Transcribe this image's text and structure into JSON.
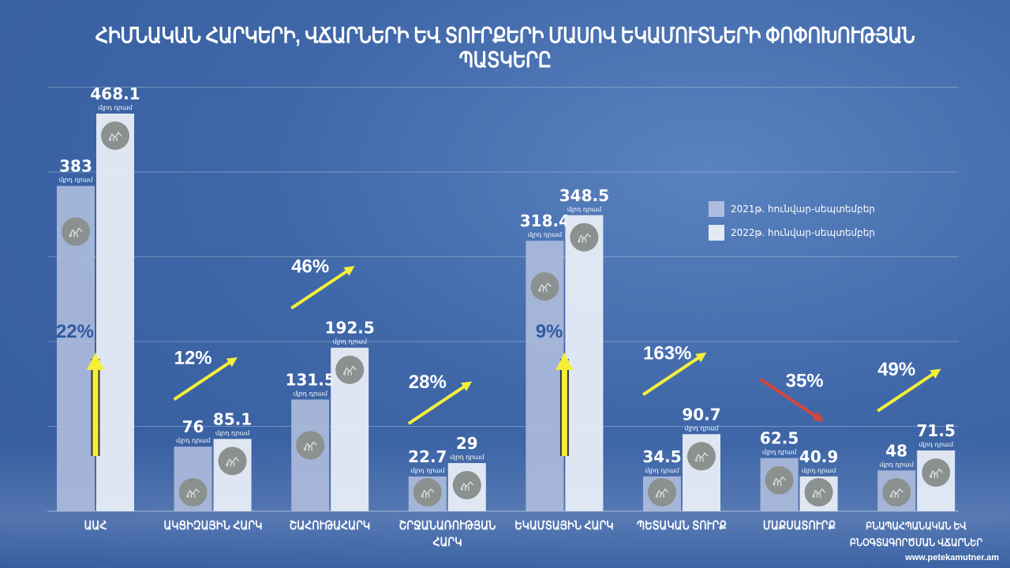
{
  "title": "ՀԻՄՆԱԿԱՆ ՀԱՐԿԵՐԻ, ՎՃԱՐՆԵՐԻ ԵՎ ՏՈՒՐՔԵՐԻ ՄԱՍՈՎ ԵԿԱՄՈՒՏՆԵՐԻ ՓՈՓՈԽՈՒԹՅԱՆ ՊԱՏԿԵՐԸ",
  "website": "www.petekamutner.am",
  "chart_data": {
    "type": "bar",
    "title": "ՀԻՄՆԱԿԱՆ ՀԱՐԿԵՐԻ, ՎՃԱՐՆԵՐԻ ԵՎ ՏՈՒՐՔԵՐԻ ՄԱՍՈՎ ԵԿԱՄՈՒՏՆԵՐԻ ՓՈՓՈԽՈՒԹՅԱՆ ՊԱՏԿԵՐԸ",
    "unit": "մլրդ դրամ",
    "categories": [
      "ԱԱՀ",
      "ԱԿՑԻԶԱՅԻՆ ՀԱՐԿ",
      "ՇԱՀՈՒԹԱՀԱՐԿ",
      "ՇՐՋԱՆԱՌՈՒԹՅԱՆ ՀԱՐԿ",
      "ԵԿԱՄՏԱՅԻՆ ՀԱՐԿ",
      "ՊԵՏԱԿԱՆ ՏՈՒՐՔ",
      "ՄԱՔՍԱՏՈՒՐՔ",
      "ԲՆԱՊԱՀՊԱՆԱԿԱՆ ԵՎ ԲՆՕԳՏԱԳՈՐԾՄԱՆ ՎՃԱՐՆԵՐ"
    ],
    "series": [
      {
        "name": "2021թ. հունվար-սեպտեմբեր",
        "color": "#aebcdd",
        "values": [
          383,
          76,
          131.5,
          22.7,
          318.4,
          34.5,
          62.5,
          48
        ],
        "labels": [
          "383",
          "76",
          "131.5",
          "22.7",
          "318.4",
          "34.5",
          "62.5",
          "48"
        ]
      },
      {
        "name": "2022թ. հունվար-սեպտեմբեր",
        "color": "#e4eaf5",
        "values": [
          468.1,
          85.1,
          192.5,
          29,
          348.5,
          90.7,
          40.9,
          71.5
        ],
        "labels": [
          "468.1",
          "85.1",
          "192.5",
          "29",
          "348.5",
          "90.7",
          "40.9",
          "71.5"
        ]
      }
    ],
    "changes": [
      {
        "label": "22%",
        "direction": "up",
        "style": "vertical"
      },
      {
        "label": "12%",
        "direction": "up",
        "style": "diagonal"
      },
      {
        "label": "46%",
        "direction": "up",
        "style": "diagonal"
      },
      {
        "label": "28%",
        "direction": "up",
        "style": "diagonal"
      },
      {
        "label": "9%",
        "direction": "up",
        "style": "vertical"
      },
      {
        "label": "163%",
        "direction": "up",
        "style": "diagonal"
      },
      {
        "label": "35%",
        "direction": "down",
        "style": "diagonal"
      },
      {
        "label": "49%",
        "direction": "up",
        "style": "diagonal"
      }
    ],
    "colors": {
      "up_arrow": "#f4f03a",
      "down_arrow": "#d9453c",
      "vertical_label": "#2f5aa0"
    },
    "ylim": [
      0,
      500
    ],
    "grid": true,
    "legend": "right"
  }
}
